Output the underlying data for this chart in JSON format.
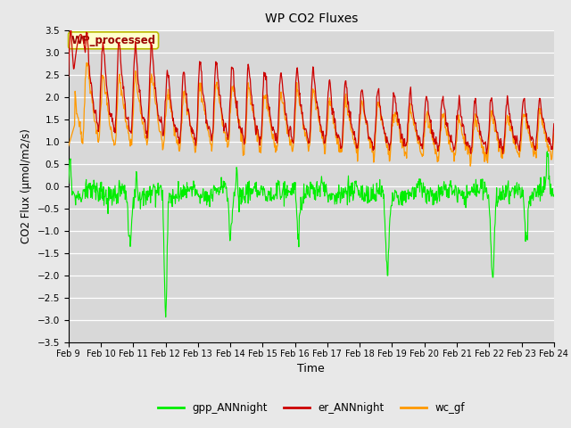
{
  "title": "WP CO2 Fluxes",
  "xlabel": "Time",
  "ylabel": "CO2 Flux (μmol/m2/s)",
  "ylim": [
    -3.5,
    3.5
  ],
  "yticks": [
    -3.5,
    -3.0,
    -2.5,
    -2.0,
    -1.5,
    -1.0,
    -0.5,
    0.0,
    0.5,
    1.0,
    1.5,
    2.0,
    2.5,
    3.0,
    3.5
  ],
  "color_gpp": "#00ee00",
  "color_er": "#cc0000",
  "color_wc": "#ff9900",
  "background_color": "#e8e8e8",
  "plot_bg_color": "#d8d8d8",
  "legend_labels": [
    "gpp_ANNnight",
    "er_ANNnight",
    "wc_gf"
  ],
  "annotation_text": "WP_processed",
  "annotation_color": "#990000",
  "annotation_bg": "#ffffcc",
  "annotation_border": "#bbbb00",
  "n_points": 960,
  "xlim": [
    9,
    24
  ]
}
